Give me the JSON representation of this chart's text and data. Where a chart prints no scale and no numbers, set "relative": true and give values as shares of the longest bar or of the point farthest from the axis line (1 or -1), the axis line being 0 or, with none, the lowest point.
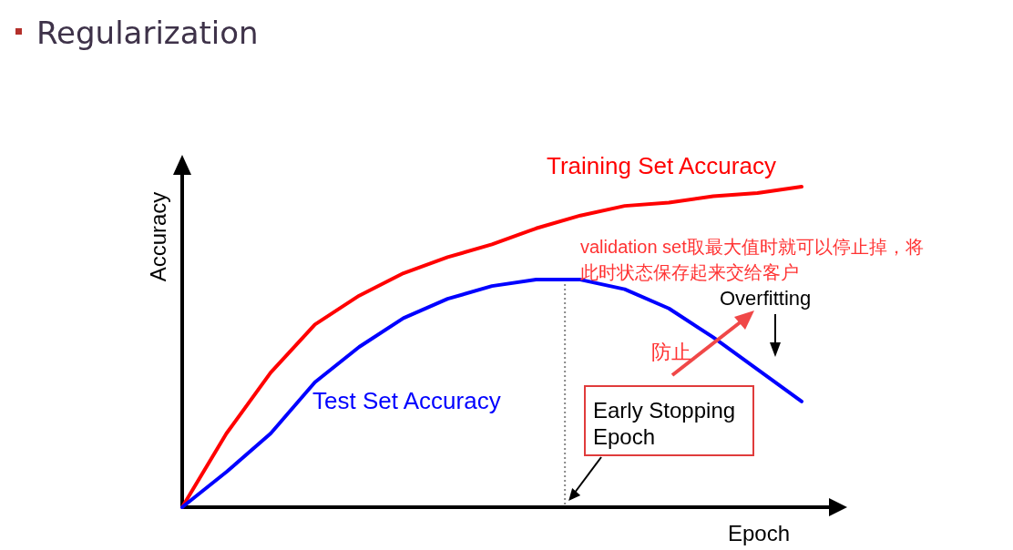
{
  "chart_data": {
    "type": "line",
    "relative": true,
    "title": "Regularization",
    "xlabel": "Epoch",
    "ylabel": "Accuracy",
    "categories": [
      null,
      null,
      null,
      null,
      null,
      null,
      null,
      null,
      null,
      null,
      null,
      null,
      null,
      null,
      null
    ],
    "series": [
      {
        "name": "Training Set Accuracy",
        "color": "#ff0000",
        "values": [
          0,
          0.23,
          0.42,
          0.57,
          0.66,
          0.73,
          0.78,
          0.82,
          0.87,
          0.91,
          0.94,
          0.95,
          0.97,
          0.98,
          1
        ]
      },
      {
        "name": "Test Set Accuracy",
        "color": "#0000ff",
        "values": [
          0,
          0.11,
          0.23,
          0.39,
          0.5,
          0.59,
          0.65,
          0.69,
          0.71,
          0.71,
          0.68,
          0.62,
          0.53,
          0.43,
          0.33
        ]
      }
    ],
    "annotations": [
      "validation set取最大值时就可以停止掉，将此时状态保存起来交给客户",
      "Overfitting",
      "防止",
      "Early Stopping Epoch"
    ]
  }
}
